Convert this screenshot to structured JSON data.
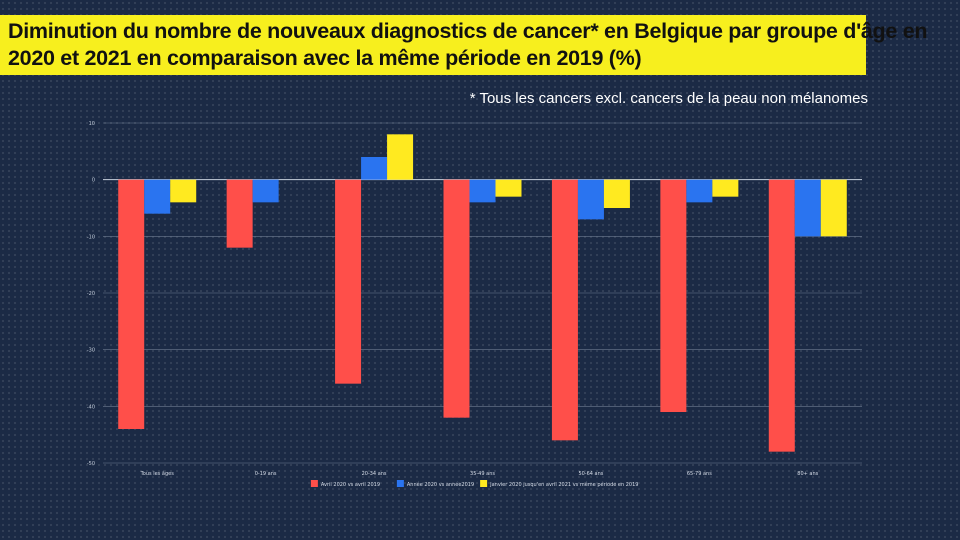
{
  "header": {
    "title": "Diminution du nombre de nouveaux diagnostics de cancer* en Belgique par groupe d'âge en 2020 et 2021 en comparaison avec la même période en 2019 (%)",
    "footnote": "* Tous les cancers excl. cancers de la peau non mélanomes"
  },
  "chart_data": {
    "type": "bar",
    "categories": [
      "Tous les âges",
      "0-19 ans",
      "20-34 ans",
      "35-49 ans",
      "50-64 ans",
      "65-79 ans",
      "80+ ans"
    ],
    "series": [
      {
        "name": "Avril 2020 vs avril 2019",
        "color": "#ff4f4a",
        "values": [
          -44,
          -12,
          -36,
          -42,
          -46,
          -41,
          -48
        ]
      },
      {
        "name": "Année 2020 vs année2019",
        "color": "#2a74f0",
        "values": [
          -6,
          -4,
          4,
          -4,
          -7,
          -4,
          -10
        ]
      },
      {
        "name": "Janvier 2020 jusqu'en avril 2021 vs même période en 2019",
        "color": "#ffea20",
        "values": [
          -4,
          null,
          8,
          -3,
          -5,
          -3,
          -10
        ]
      }
    ],
    "ylim": [
      -50,
      10
    ],
    "yticks": [
      10,
      0,
      -10,
      -20,
      -30,
      -40,
      -50
    ],
    "grid": true,
    "legend_position": "bottom"
  }
}
